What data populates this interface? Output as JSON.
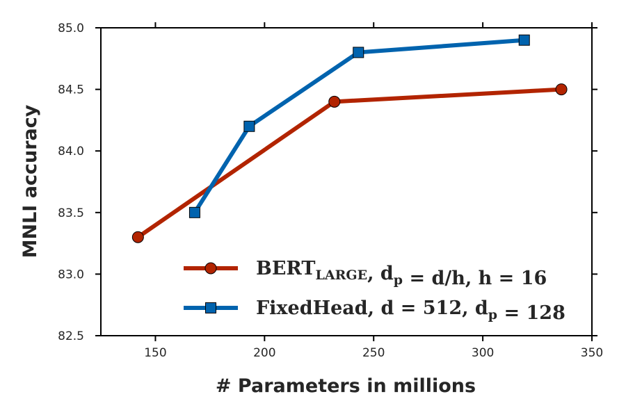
{
  "chart_data": {
    "type": "line",
    "xlabel": "# Parameters in millions",
    "ylabel": "MNLI accuracy",
    "xlim": [
      125,
      350
    ],
    "ylim": [
      82.5,
      85.0
    ],
    "xticks": [
      150,
      200,
      250,
      300,
      350
    ],
    "yticks": [
      82.5,
      83.0,
      83.5,
      84.0,
      84.5,
      85.0
    ],
    "xtick_labels": [
      "150",
      "200",
      "250",
      "300",
      "350"
    ],
    "ytick_labels": [
      "82.5",
      "83.0",
      "83.5",
      "84.0",
      "84.5",
      "85.0"
    ],
    "legend_position": "lower-right",
    "grid": false,
    "series": [
      {
        "name": "BERT_LARGE, d_p = d/h, h = 16",
        "legend": {
          "main": "BERT",
          "sub": "LARGE",
          "rest": ", d",
          "rest_sub": "p",
          "tail": " = d/h, h = 16"
        },
        "color": "#b22400",
        "marker": "circle",
        "x": [
          142,
          232,
          336
        ],
        "y": [
          83.3,
          84.4,
          84.5
        ]
      },
      {
        "name": "FixedHead, d = 512, d_p = 128",
        "legend": {
          "main": "FixedHead",
          "sub": "",
          "rest": ", d = 512, d",
          "rest_sub": "p",
          "tail": " = 128"
        },
        "color": "#0063ae",
        "marker": "square",
        "x": [
          168,
          193,
          243,
          319
        ],
        "y": [
          83.5,
          84.2,
          84.8,
          84.9
        ]
      }
    ]
  }
}
